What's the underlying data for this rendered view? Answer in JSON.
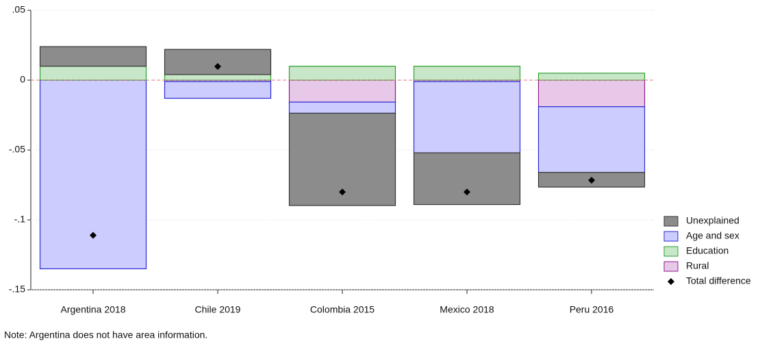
{
  "chart_data": {
    "type": "bar",
    "categories": [
      "Argentina 2018",
      "Chile 2019",
      "Colombia 2015",
      "Mexico 2018",
      "Peru 2016"
    ],
    "series": [
      {
        "name": "Unexplained",
        "color": "#8c8c8c",
        "edge": "#333333",
        "values": [
          0.014,
          0.018,
          -0.066,
          -0.037,
          -0.0105
        ]
      },
      {
        "name": "Age and sex",
        "color": "#ccccff",
        "edge": "#2a2ad4",
        "values": [
          -0.135,
          -0.012,
          -0.008,
          -0.051,
          -0.047
        ]
      },
      {
        "name": "Education",
        "color": "#c8e6c8",
        "edge": "#2ca02c",
        "values": [
          0.01,
          0.004,
          0.01,
          0.01,
          0.005
        ]
      },
      {
        "name": "Rural",
        "color": "#e8c8e8",
        "edge": "#8b1a8b",
        "values": [
          null,
          -0.001,
          -0.0157,
          -0.001,
          -0.019
        ]
      }
    ],
    "total": {
      "name": "Total difference",
      "color": "#000000",
      "values": [
        -0.111,
        0.0098,
        -0.08,
        -0.08,
        -0.0716
      ]
    },
    "ylim": [
      -0.15,
      0.05
    ],
    "yticks": [
      {
        "value": -0.15,
        "label": "-.15"
      },
      {
        "value": -0.1,
        "label": "-.1"
      },
      {
        "value": -0.05,
        "label": "-.05"
      },
      0,
      {
        "value": 0.05,
        "label": ".05"
      }
    ],
    "grid": true,
    "note": "Note: Argentina does not have area information."
  }
}
